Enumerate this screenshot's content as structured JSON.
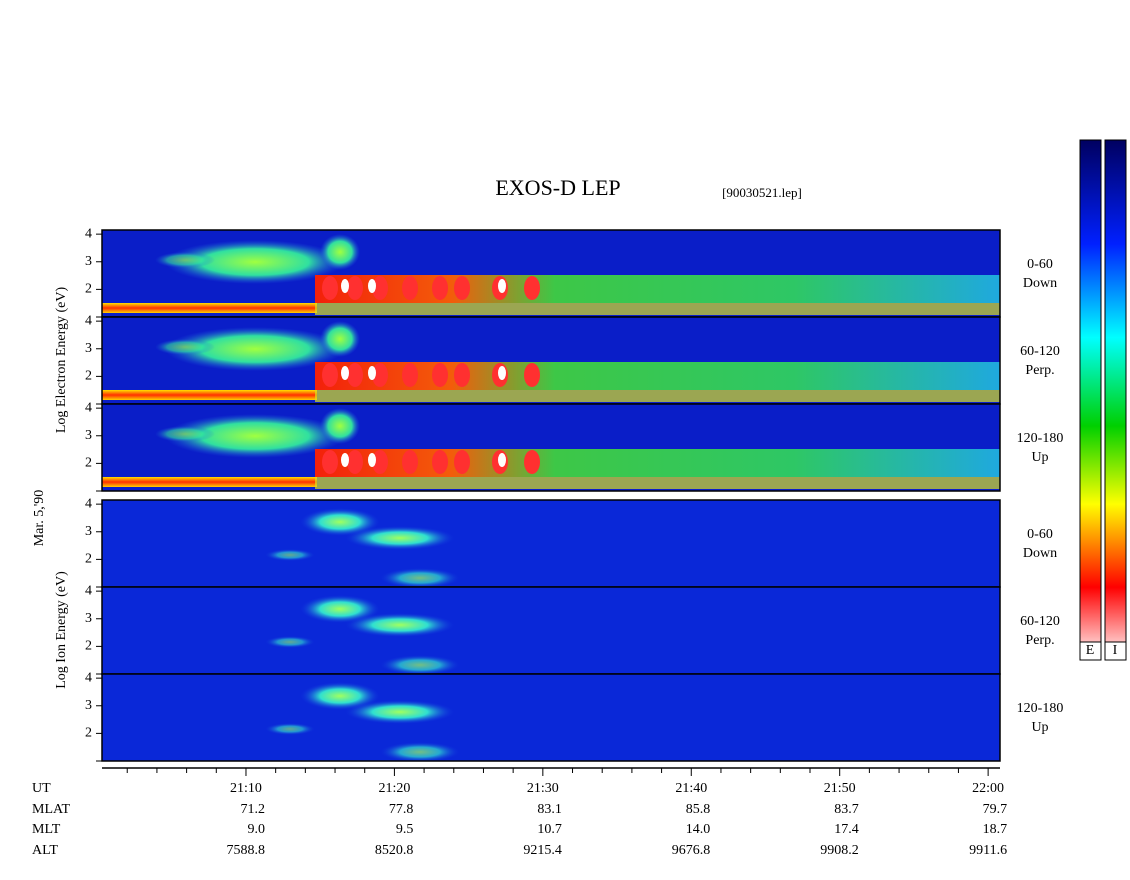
{
  "chart_data": {
    "type": "spectrogram",
    "title": "EXOS-D LEP",
    "subtitle": "[90030521.lep]",
    "date_label": "Mar. 5,'90",
    "groups": [
      {
        "kind": "electron",
        "ylabel": "Log   Electron   Energy (eV)"
      },
      {
        "kind": "ion",
        "ylabel": "Log   Ion   Energy (eV)"
      }
    ],
    "panels": [
      {
        "group": 0,
        "angle": "0-60",
        "direction": "Down"
      },
      {
        "group": 0,
        "angle": "60-120",
        "direction": "Perp."
      },
      {
        "group": 0,
        "angle": "120-180",
        "direction": "Up"
      },
      {
        "group": 1,
        "angle": "0-60",
        "direction": "Down"
      },
      {
        "group": 1,
        "angle": "60-120",
        "direction": "Perp."
      },
      {
        "group": 1,
        "angle": "120-180",
        "direction": "Up"
      }
    ],
    "ylim": [
      1,
      4.15
    ],
    "yticks": [
      2,
      3,
      4
    ],
    "xlim": [
      0.3,
      60.8
    ],
    "xticks": [
      {
        "value": 10,
        "label": "21:10"
      },
      {
        "value": 20,
        "label": "21:20"
      },
      {
        "value": 30,
        "label": "21:30"
      },
      {
        "value": 40,
        "label": "21:40"
      },
      {
        "value": 50,
        "label": "21:50"
      },
      {
        "value": 60,
        "label": "22:00"
      }
    ],
    "ephemeris": {
      "labels": [
        "UT",
        "MLAT",
        "MLT",
        "ALT"
      ],
      "rows": [
        [
          "71.2",
          "77.8",
          "83.1",
          "85.8",
          "83.7",
          "79.7"
        ],
        [
          "9.0",
          "9.5",
          "10.7",
          "14.0",
          "17.4",
          "18.7"
        ],
        [
          "7588.8",
          "8520.8",
          "9215.4",
          "9676.8",
          "9908.2",
          "9911.6"
        ]
      ]
    },
    "colorbar_labels": [
      "E",
      "I"
    ]
  }
}
